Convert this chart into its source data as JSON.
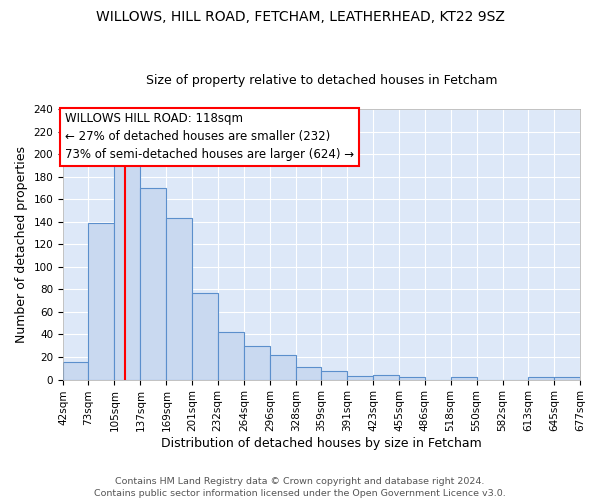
{
  "title1": "WILLOWS, HILL ROAD, FETCHAM, LEATHERHEAD, KT22 9SZ",
  "title2": "Size of property relative to detached houses in Fetcham",
  "xlabel": "Distribution of detached houses by size in Fetcham",
  "ylabel": "Number of detached properties",
  "bin_edges": [
    42,
    73,
    105,
    137,
    169,
    201,
    232,
    264,
    296,
    328,
    359,
    391,
    423,
    455,
    486,
    518,
    550,
    582,
    613,
    645,
    677
  ],
  "bar_heights": [
    16,
    139,
    200,
    170,
    143,
    77,
    42,
    30,
    22,
    11,
    8,
    3,
    4,
    2,
    0,
    2,
    0,
    0,
    2,
    2
  ],
  "bar_color": "#c9d9f0",
  "bar_edge_color": "#5b8fcc",
  "background_color": "#dde8f8",
  "grid_color": "white",
  "vline_x": 118,
  "vline_color": "red",
  "annotation_text": "WILLOWS HILL ROAD: 118sqm\n← 27% of detached houses are smaller (232)\n73% of semi-detached houses are larger (624) →",
  "annotation_box_color": "white",
  "annotation_box_edge": "red",
  "footer": "Contains HM Land Registry data © Crown copyright and database right 2024.\nContains public sector information licensed under the Open Government Licence v3.0.",
  "ylim": [
    0,
    240
  ],
  "yticks": [
    0,
    20,
    40,
    60,
    80,
    100,
    120,
    140,
    160,
    180,
    200,
    220,
    240
  ],
  "title1_fontsize": 10,
  "title2_fontsize": 9,
  "ylabel_fontsize": 9,
  "xlabel_fontsize": 9,
  "tick_fontsize": 7.5,
  "annotation_fontsize": 8.5,
  "footer_fontsize": 6.8
}
